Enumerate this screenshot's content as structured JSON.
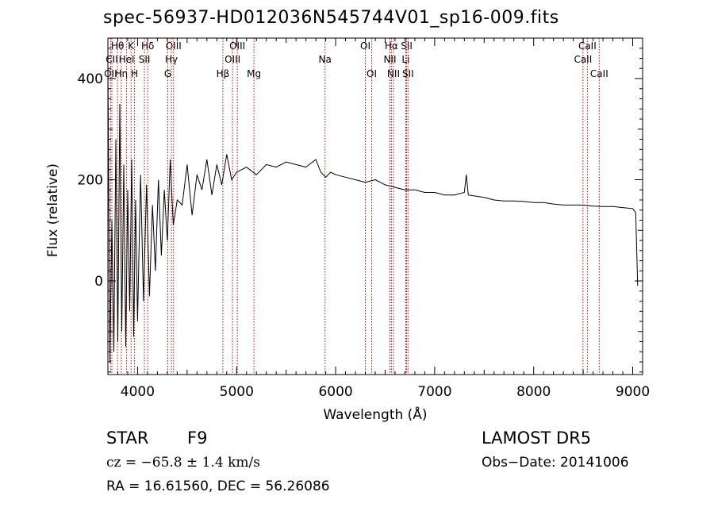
{
  "chart_data": {
    "type": "line",
    "title": "spec-56937-HD012036N545744V01_sp16-009.fits",
    "xlabel": "Wavelength (Å)",
    "ylabel": "Flux (relative)",
    "xlim": [
      3700,
      9100
    ],
    "ylim": [
      -185,
      480
    ],
    "xticks": [
      4000,
      5000,
      6000,
      7000,
      8000,
      9000
    ],
    "yticks": [
      0,
      200,
      400
    ],
    "grid": false,
    "series": [
      {
        "x": [
          3700,
          3720,
          3740,
          3760,
          3780,
          3800,
          3820,
          3840,
          3860,
          3880,
          3900,
          3920,
          3940,
          3960,
          3980,
          4000,
          4030,
          4060,
          4090,
          4120,
          4150,
          4180,
          4210,
          4240,
          4270,
          4300,
          4330,
          4360,
          4400,
          4450,
          4500,
          4550,
          4600,
          4650,
          4700,
          4750,
          4800,
          4850,
          4900,
          4950,
          5000,
          5100,
          5200,
          5300,
          5400,
          5500,
          5600,
          5700,
          5800,
          5850,
          5900,
          5950,
          6000,
          6100,
          6200,
          6300,
          6400,
          6500,
          6600,
          6700,
          6800,
          6900,
          7000,
          7100,
          7200,
          7300,
          7320,
          7340,
          7400,
          7500,
          7600,
          7700,
          7800,
          7900,
          8000,
          8100,
          8200,
          8300,
          8400,
          8500,
          8600,
          8700,
          8800,
          8900,
          9000,
          9030,
          9050
        ],
        "y": [
          430,
          -160,
          120,
          -140,
          280,
          -120,
          350,
          -100,
          230,
          -130,
          180,
          -60,
          240,
          -110,
          160,
          -80,
          210,
          -40,
          190,
          -30,
          150,
          20,
          200,
          50,
          180,
          80,
          240,
          110,
          160,
          150,
          230,
          130,
          210,
          180,
          240,
          170,
          230,
          190,
          250,
          200,
          215,
          225,
          210,
          230,
          225,
          235,
          230,
          225,
          240,
          215,
          205,
          215,
          210,
          205,
          200,
          195,
          200,
          190,
          185,
          180,
          180,
          175,
          175,
          170,
          170,
          175,
          210,
          170,
          168,
          165,
          160,
          158,
          158,
          157,
          155,
          155,
          152,
          150,
          150,
          150,
          148,
          147,
          147,
          145,
          143,
          135,
          -10
        ]
      }
    ],
    "lines": [
      {
        "label": "Hθ",
        "x": 3798,
        "row": 1
      },
      {
        "label": "CII",
        "x": 3740,
        "row": 2
      },
      {
        "label": "OII",
        "x": 3727,
        "row": 3
      },
      {
        "label": "Hη",
        "x": 3835,
        "row": 3
      },
      {
        "label": "K",
        "x": 3934,
        "row": 1
      },
      {
        "label": "HeI",
        "x": 3889,
        "row": 2
      },
      {
        "label": "H",
        "x": 3969,
        "row": 3
      },
      {
        "label": "Hδ",
        "x": 4102,
        "row": 1
      },
      {
        "label": "SII",
        "x": 4069,
        "row": 2
      },
      {
        "label": "OIII",
        "x": 4363,
        "row": 1
      },
      {
        "label": "Hγ",
        "x": 4341,
        "row": 2
      },
      {
        "label": "G",
        "x": 4305,
        "row": 3
      },
      {
        "label": "OIII",
        "x": 5007,
        "row": 1
      },
      {
        "label": "OIII",
        "x": 4959,
        "row": 2
      },
      {
        "label": "Hβ",
        "x": 4861,
        "row": 3
      },
      {
        "label": "Mg",
        "x": 5175,
        "row": 3
      },
      {
        "label": "Na",
        "x": 5893,
        "row": 2
      },
      {
        "label": "OI",
        "x": 6300,
        "row": 1
      },
      {
        "label": "OI",
        "x": 6364,
        "row": 3
      },
      {
        "label": "Hα",
        "x": 6563,
        "row": 1
      },
      {
        "label": "NII",
        "x": 6548,
        "row": 2
      },
      {
        "label": "NII",
        "x": 6584,
        "row": 3
      },
      {
        "label": "SII",
        "x": 6717,
        "row": 1
      },
      {
        "label": "Li",
        "x": 6708,
        "row": 2
      },
      {
        "label": "SII",
        "x": 6731,
        "row": 3
      },
      {
        "label": "CaII",
        "x": 8542,
        "row": 1
      },
      {
        "label": "CaII",
        "x": 8498,
        "row": 2
      },
      {
        "label": "CaII",
        "x": 8662,
        "row": 3
      }
    ]
  },
  "info": {
    "class": "STAR",
    "subclass": "F9",
    "survey": "LAMOST DR5",
    "cz": "cz = −65.8 ± 1.4 km/s",
    "obs_date": "Obs−Date: 20141006",
    "coords": "RA =  16.61560, DEC =  56.26086"
  },
  "colors": {
    "axis": "#000000",
    "spectrum": "#000000",
    "line_marker": "#c00000"
  }
}
